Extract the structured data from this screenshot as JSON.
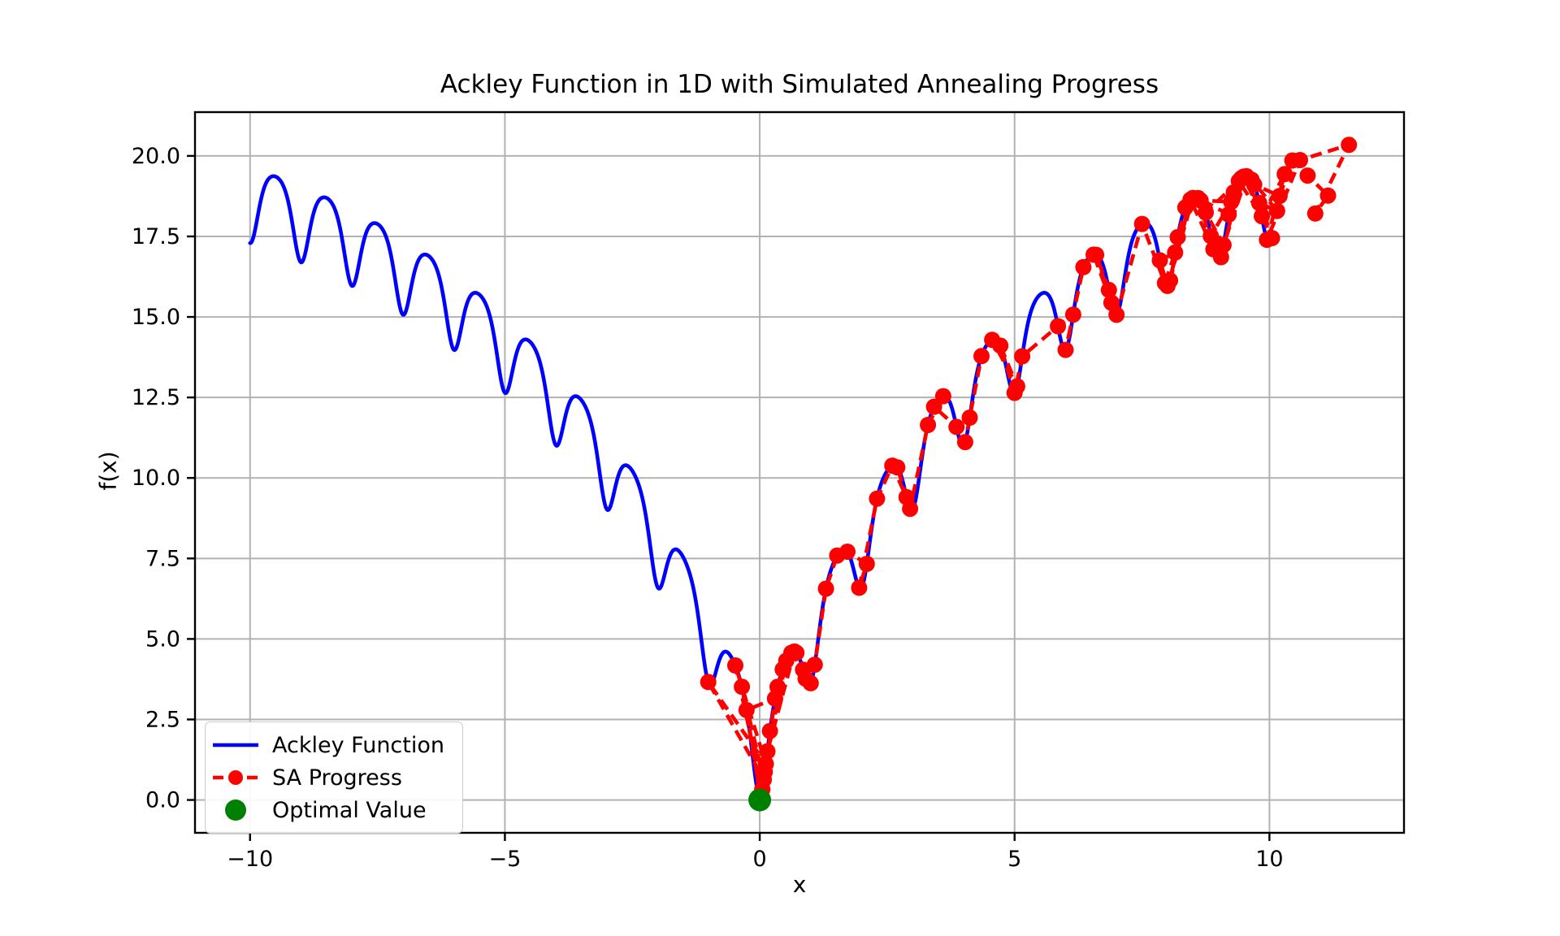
{
  "title": "Ackley Function in 1D with Simulated Annealing Progress",
  "colors": {
    "ackley_blue": "#0000ff",
    "sa_red": "#ff0000",
    "optimal_green": "#008000",
    "grid": "#b2b2b2",
    "spine": "#000000",
    "text": "#000000",
    "legend_border": "#cbcbcb"
  },
  "axes": {
    "xlabel": "x",
    "ylabel": "f(x)",
    "xlim": [
      -11.08,
      12.64
    ],
    "ylim": [
      -1.02,
      21.36
    ],
    "grid": true,
    "xticks": [
      {
        "value": -10,
        "label": "−10"
      },
      {
        "value": -5,
        "label": "−5"
      },
      {
        "value": 0,
        "label": "0"
      },
      {
        "value": 5,
        "label": "5"
      },
      {
        "value": 10,
        "label": "10"
      }
    ],
    "yticks": [
      {
        "value": 0,
        "label": "0.0"
      },
      {
        "value": 2.5,
        "label": "2.5"
      },
      {
        "value": 5,
        "label": "5.0"
      },
      {
        "value": 7.5,
        "label": "7.5"
      },
      {
        "value": 10,
        "label": "10.0"
      },
      {
        "value": 12.5,
        "label": "12.5"
      },
      {
        "value": 15,
        "label": "15.0"
      },
      {
        "value": 17.5,
        "label": "17.5"
      },
      {
        "value": 20,
        "label": "20.0"
      }
    ]
  },
  "chart_data": {
    "type": "line",
    "title": "Ackley Function in 1D with Simulated Annealing Progress",
    "xlabel": "x",
    "ylabel": "f(x)",
    "xlim": [
      -11.08,
      12.64
    ],
    "ylim": [
      -1.02,
      21.36
    ],
    "grid": true,
    "legend_position": "lower-left",
    "function_note": "ackley1d(x) = -a*exp(-b*|x|) - exp(cos(c*x)) + a + e; all series y-values lie on this curve",
    "series": [
      {
        "name": "Ackley Function",
        "kind": "function-curve",
        "color": "#0000ff",
        "linestyle": "solid",
        "linewidth": 4.6,
        "function": "ackley1d",
        "params": {
          "a": 20,
          "b": 0.2,
          "c": 6.283185307179586
        },
        "domain": [
          -10,
          10
        ],
        "samples": 1100,
        "endpoint_values": {
          "f_at_minus10": 17.29,
          "f_at_0": 0.0,
          "f_at_10": 17.29
        }
      },
      {
        "name": "SA Progress",
        "kind": "path-with-markers",
        "color": "#ff0000",
        "linestyle": "dashed",
        "dash": "14 8",
        "linewidth": 4.6,
        "marker": "circle",
        "marker_radius": 10,
        "y_rule": "y = ackley1d(x)",
        "x": [
          8.05,
          8.45,
          8.9,
          8.6,
          9.2,
          9.55,
          9.1,
          8.75,
          9.4,
          9.85,
          10.3,
          9.95,
          10.6,
          11.56,
          10.9,
          11.15,
          10.75,
          10.45,
          10.2,
          9.7,
          10.05,
          9.5,
          9.3,
          9.65,
          10.15,
          9.8,
          9.45,
          9.05,
          8.85,
          9.25,
          8.65,
          8.35,
          8.2,
          8.5,
          8.0,
          7.85,
          8.15,
          7.95,
          7.5,
          7.0,
          6.85,
          6.6,
          6.9,
          6.55,
          6.35,
          6.0,
          6.15,
          5.85,
          5.15,
          5.0,
          4.72,
          5.05,
          4.56,
          4.35,
          4.12,
          4.03,
          3.86,
          3.42,
          3.6,
          3.3,
          2.95,
          2.7,
          2.88,
          2.6,
          2.3,
          1.95,
          2.1,
          1.72,
          1.52,
          1.3,
          1.08,
          0.9,
          1.0,
          0.72,
          0.85,
          0.62,
          0.45,
          0.3,
          0.05,
          -0.48,
          0.12,
          -1.01,
          0.08,
          -0.35,
          0.02,
          -0.26,
          0.3,
          0.52,
          0.15,
          0.68,
          0.35,
          0.2,
          0.1,
          0.05,
          0.02
        ]
      },
      {
        "name": "Optimal Value",
        "kind": "single-point",
        "color": "#008000",
        "marker": "circle",
        "marker_radius": 14,
        "x": 0,
        "y": 0
      }
    ]
  },
  "legend": {
    "entries": [
      {
        "label": "Ackley Function",
        "swatch": "blue-solid-line"
      },
      {
        "label": "SA Progress",
        "swatch": "red-dashed-line-with-dot"
      },
      {
        "label": "Optimal Value",
        "swatch": "green-dot"
      }
    ]
  }
}
